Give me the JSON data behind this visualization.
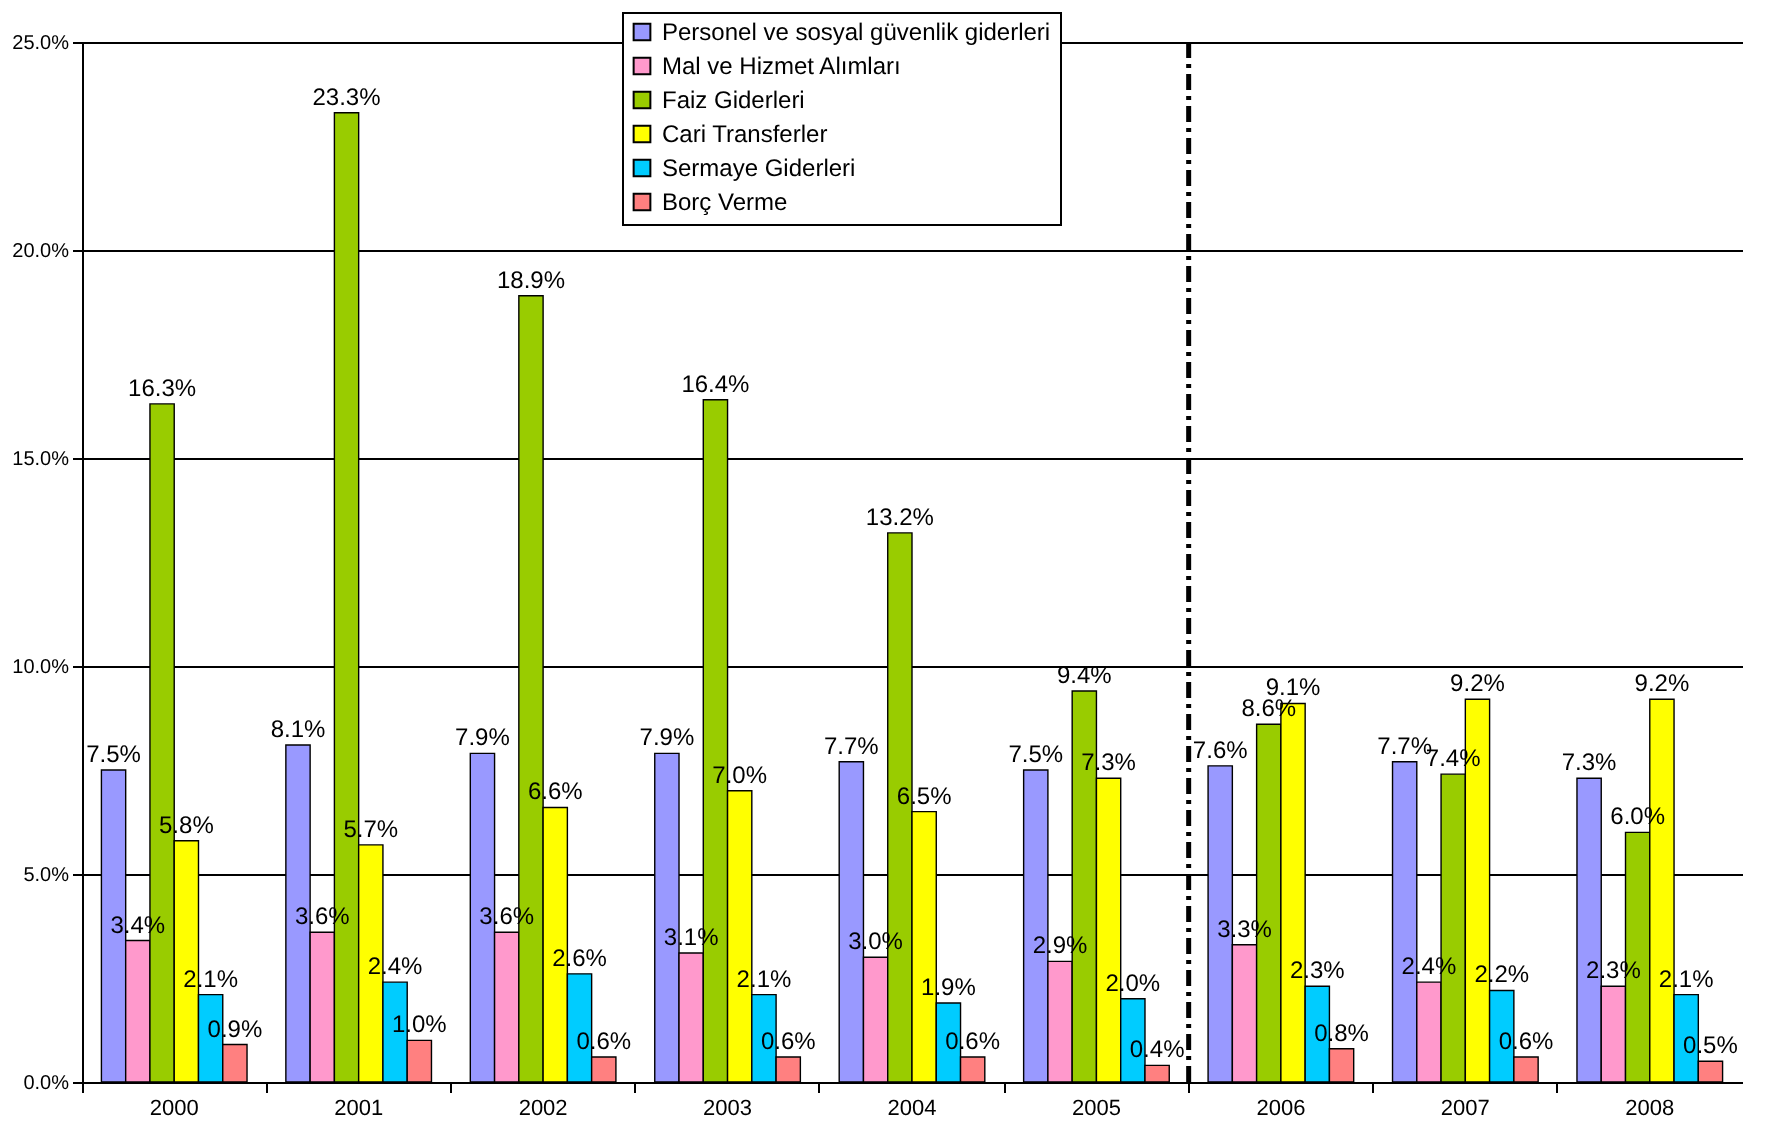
{
  "chart_data": {
    "type": "bar",
    "categories": [
      "2000",
      "2001",
      "2002",
      "2003",
      "2004",
      "2005",
      "2006",
      "2007",
      "2008"
    ],
    "series": [
      {
        "name": "Personel ve sosyal güvenlik giderleri",
        "color": "#9999ff",
        "values": [
          7.5,
          8.1,
          7.9,
          7.9,
          7.7,
          7.5,
          7.6,
          7.7,
          7.3
        ],
        "value_labels": [
          "7.5%",
          "8.1%",
          "7.9%",
          "7.9%",
          "7.7%",
          "7.5%",
          "7.6%",
          "7.7%",
          "7.3%"
        ]
      },
      {
        "name": "Mal ve Hizmet Alımları",
        "color": "#ff99cc",
        "values": [
          3.4,
          3.6,
          3.6,
          3.1,
          3.0,
          2.9,
          3.3,
          2.4,
          2.3
        ],
        "value_labels": [
          "3.4%",
          "3.6%",
          "3.6%",
          "3.1%",
          "3.0%",
          "2.9%",
          "3.3%",
          "2.4%",
          "2.3%"
        ]
      },
      {
        "name": "Faiz Giderleri",
        "color": "#99cc00",
        "values": [
          16.3,
          23.3,
          18.9,
          16.4,
          13.2,
          9.4,
          8.6,
          7.4,
          6.0
        ],
        "value_labels": [
          "16.3%",
          "23.3%",
          "18.9%",
          "16.4%",
          "13.2%",
          "9.4%",
          "8.6%",
          "7.4%",
          "6.0%"
        ]
      },
      {
        "name": "Cari Transferler",
        "color": "#ffff00",
        "values": [
          5.8,
          5.7,
          6.6,
          7.0,
          6.5,
          7.3,
          9.1,
          9.2,
          9.2
        ],
        "value_labels": [
          "5.8%",
          "5.7%",
          "6.6%",
          "7.0%",
          "6.5%",
          "7.3%",
          "9.1%",
          "9.2%",
          "9.2%"
        ]
      },
      {
        "name": "Sermaye Giderleri",
        "color": "#00ccff",
        "values": [
          2.1,
          2.4,
          2.6,
          2.1,
          1.9,
          2.0,
          2.3,
          2.2,
          2.1
        ],
        "value_labels": [
          "2.1%",
          "2.4%",
          "2.6%",
          "2.1%",
          "1.9%",
          "2.0%",
          "2.3%",
          "2.2%",
          "2.1%"
        ]
      },
      {
        "name": "Borç Verme",
        "color": "#ff8080",
        "values": [
          0.9,
          1.0,
          0.6,
          0.6,
          0.6,
          0.4,
          0.8,
          0.6,
          0.5
        ],
        "value_labels": [
          "0.9%",
          "1.0%",
          "0.6%",
          "0.6%",
          "0.6%",
          "0.4%",
          "0.8%",
          "0.6%",
          "0.5%"
        ]
      }
    ],
    "ylim": [
      0,
      25
    ],
    "yticks": [
      {
        "value": 0,
        "label": "0.0%"
      },
      {
        "value": 5,
        "label": "5.0%"
      },
      {
        "value": 10,
        "label": "10.0%"
      },
      {
        "value": 15,
        "label": "15.0%"
      },
      {
        "value": 20,
        "label": "20.0%"
      },
      {
        "value": 25,
        "label": "25.0%"
      }
    ],
    "grid": "y",
    "legend": "top",
    "ref_lines": [
      {
        "axis": "x",
        "value": "2006",
        "color": "#000000",
        "line_style": "dashdot"
      }
    ]
  }
}
